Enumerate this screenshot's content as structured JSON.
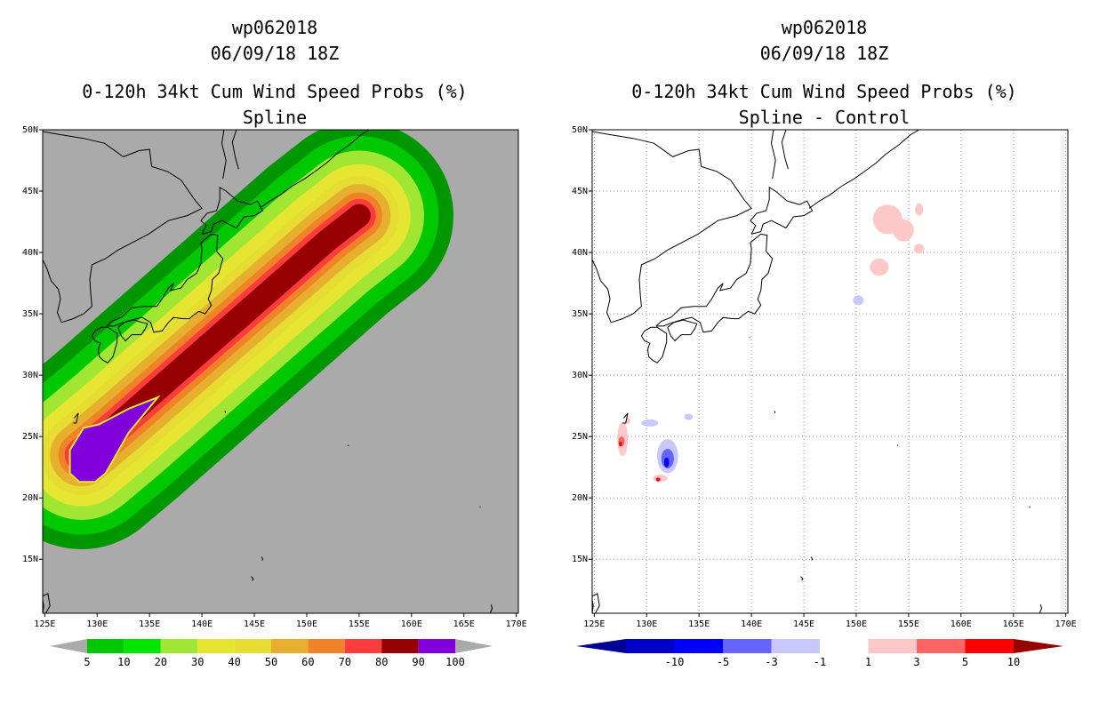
{
  "chart_data": [
    {
      "type": "heatmap",
      "storm_id": "wp062018",
      "datetime": "06/09/18 18Z",
      "title": "0-120h 34kt Cum Wind Speed Probs (%)",
      "subtitle": "Spline",
      "background": "#aaaaaa",
      "lon_ticks": [
        "125E",
        "130E",
        "135E",
        "140E",
        "145E",
        "150E",
        "155E",
        "160E",
        "165E",
        "170E"
      ],
      "lat_ticks": [
        "15N",
        "20N",
        "25N",
        "30N",
        "35N",
        "40N",
        "45N",
        "50N"
      ],
      "xlim": [
        124.8,
        170.2
      ],
      "ylim": [
        10.6,
        50.0
      ],
      "grid": false,
      "colorbar": {
        "labels": [
          "5",
          "10",
          "20",
          "30",
          "40",
          "50",
          "60",
          "70",
          "80",
          "90",
          "100"
        ],
        "colors": [
          "#009600",
          "#00c800",
          "#00e600",
          "#a0e632",
          "#e6e632",
          "#e6dc32",
          "#e6af2d",
          "#f08228",
          "#fa3c3c",
          "#960000",
          "#8200dc"
        ],
        "end_color": "#aaaaaa"
      },
      "field": {
        "track": [
          [
            128.5,
            23.5
          ],
          [
            132,
            26
          ],
          [
            136,
            29
          ],
          [
            140,
            32
          ],
          [
            144,
            35
          ],
          [
            148,
            38
          ],
          [
            152,
            41
          ],
          [
            155,
            43
          ]
        ],
        "levels": [
          {
            "min": 5,
            "color": "#009600",
            "width": 9.0
          },
          {
            "min": 10,
            "color": "#00c800",
            "width": 7.6
          },
          {
            "min": 20,
            "color": "#a0e632",
            "width": 6.2
          },
          {
            "min": 30,
            "color": "#e6e632",
            "width": 4.9
          },
          {
            "min": 40,
            "color": "#e6dc32",
            "width": 3.8
          },
          {
            "min": 50,
            "color": "#e6af2d",
            "width": 3.0
          },
          {
            "min": 60,
            "color": "#f08228",
            "width": 2.2
          },
          {
            "min": 70,
            "color": "#fa3c3c",
            "width": 1.6
          },
          {
            "min": 80,
            "color": "#960000",
            "width": 1.1
          }
        ],
        "core_polygon": [
          [
            127.4,
            23.9
          ],
          [
            128.7,
            25.7
          ],
          [
            130.2,
            26.0
          ],
          [
            133.1,
            27.3
          ],
          [
            135.8,
            28.2
          ],
          [
            133.0,
            25.3
          ],
          [
            130.8,
            22.0
          ],
          [
            129.8,
            21.3
          ],
          [
            128.3,
            21.3
          ],
          [
            127.4,
            22.0
          ]
        ],
        "core_color": "#8200dc"
      }
    },
    {
      "type": "heatmap",
      "storm_id": "wp062018",
      "datetime": "06/09/18 18Z",
      "title": "0-120h 34kt Cum Wind Speed Probs (%)",
      "subtitle": "Spline - Control",
      "background": "#ffffff",
      "lon_ticks": [
        "125E",
        "130E",
        "135E",
        "140E",
        "145E",
        "150E",
        "155E",
        "160E",
        "165E",
        "170E"
      ],
      "lat_ticks": [
        "15N",
        "20N",
        "25N",
        "30N",
        "35N",
        "40N",
        "45N",
        "50N"
      ],
      "xlim": [
        124.8,
        170.2
      ],
      "ylim": [
        10.6,
        50.0
      ],
      "grid": true,
      "colorbar": {
        "labels": [
          "-10",
          "-5",
          "-3",
          "-1",
          "1",
          "3",
          "5",
          "10"
        ],
        "colors": [
          "#0000c8",
          "#0000ff",
          "#6464ff",
          "#c8c8ff",
          "#ffffff",
          "#ffc8c8",
          "#ff6464",
          "#ff0000"
        ],
        "end_colors": [
          "#000096",
          "#960000"
        ]
      },
      "anomalies": [
        {
          "lon": 153.0,
          "lat": 42.7,
          "rx": 1.4,
          "ry": 1.2,
          "color": "#ffc8c8"
        },
        {
          "lon": 154.5,
          "lat": 41.8,
          "rx": 1.0,
          "ry": 0.9,
          "color": "#ffc8c8"
        },
        {
          "lon": 156.0,
          "lat": 43.5,
          "rx": 0.4,
          "ry": 0.5,
          "color": "#ffc8c8"
        },
        {
          "lon": 156.0,
          "lat": 40.3,
          "rx": 0.5,
          "ry": 0.4,
          "color": "#ffc8c8"
        },
        {
          "lon": 152.2,
          "lat": 38.8,
          "rx": 0.9,
          "ry": 0.7,
          "color": "#ffc8c8"
        },
        {
          "lon": 150.2,
          "lat": 36.1,
          "rx": 0.5,
          "ry": 0.4,
          "color": "#c8c8ff"
        },
        {
          "lon": 132.0,
          "lat": 23.4,
          "rx": 1.0,
          "ry": 1.4,
          "color": "#c8c8ff"
        },
        {
          "lon": 132.0,
          "lat": 23.2,
          "rx": 0.6,
          "ry": 0.8,
          "color": "#6464ff"
        },
        {
          "lon": 131.9,
          "lat": 22.9,
          "rx": 0.25,
          "ry": 0.4,
          "color": "#0000ff"
        },
        {
          "lon": 131.3,
          "lat": 21.6,
          "rx": 0.7,
          "ry": 0.3,
          "color": "#ffc8c8"
        },
        {
          "lon": 131.1,
          "lat": 21.5,
          "rx": 0.2,
          "ry": 0.15,
          "color": "#ff0000"
        },
        {
          "lon": 127.7,
          "lat": 24.8,
          "rx": 0.5,
          "ry": 1.4,
          "color": "#ffc8c8"
        },
        {
          "lon": 127.6,
          "lat": 24.6,
          "rx": 0.3,
          "ry": 0.4,
          "color": "#ff6464"
        },
        {
          "lon": 127.5,
          "lat": 24.4,
          "rx": 0.15,
          "ry": 0.2,
          "color": "#ff0000"
        },
        {
          "lon": 128.2,
          "lat": 26.3,
          "rx": 0.25,
          "ry": 0.3,
          "color": "#ffc8c8"
        },
        {
          "lon": 130.3,
          "lat": 26.1,
          "rx": 0.8,
          "ry": 0.3,
          "color": "#c8c8ff"
        },
        {
          "lon": 134.0,
          "lat": 26.6,
          "rx": 0.4,
          "ry": 0.25,
          "color": "#c8c8ff"
        }
      ]
    }
  ]
}
